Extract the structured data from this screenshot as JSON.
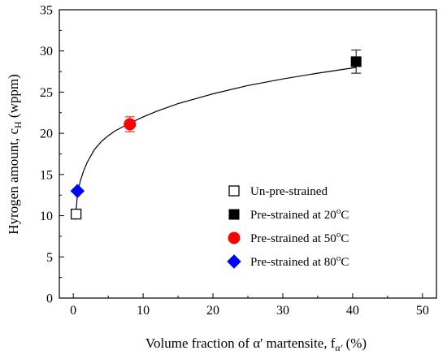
{
  "chart_data": {
    "type": "scatter",
    "xlabel": "Volume fraction of α' martensite, f",
    "xlabel_sub": "α'",
    "xlabel_suffix": " (%)",
    "ylabel": "Hyrogen amount, c",
    "ylabel_sub": "H",
    "ylabel_suffix": " (wppm)",
    "xlim": [
      -2,
      52
    ],
    "ylim": [
      0,
      35
    ],
    "xticks": [
      0,
      10,
      20,
      30,
      40,
      50
    ],
    "yticks": [
      0,
      5,
      10,
      15,
      20,
      25,
      30,
      35
    ],
    "grid": false,
    "legend_position": "center-right",
    "series": [
      {
        "name": "Un-pre-strained",
        "name_sup": "",
        "name_tail": "",
        "marker": "square-open",
        "color": "#000000",
        "points": [
          {
            "x": 0.4,
            "y": 10.2,
            "err": 0
          }
        ]
      },
      {
        "name": "Pre-strained at 20",
        "name_sup": "o",
        "name_tail": "C",
        "marker": "square-filled",
        "color": "#000000",
        "points": [
          {
            "x": 40.5,
            "y": 28.7,
            "err": 1.4
          }
        ]
      },
      {
        "name": "Pre-strained at 50",
        "name_sup": "o",
        "name_tail": "C",
        "marker": "circle",
        "color": "#ff0000",
        "points": [
          {
            "x": 8.1,
            "y": 21.1,
            "err": 0.9
          }
        ]
      },
      {
        "name": "Pre-strained at 80",
        "name_sup": "o",
        "name_tail": "C",
        "marker": "diamond",
        "color": "#0000ff",
        "points": [
          {
            "x": 0.6,
            "y": 13.0,
            "err": 0
          }
        ]
      }
    ],
    "fit_curve": {
      "x": [
        0.3,
        0.6,
        1,
        1.5,
        2,
        3,
        4,
        5,
        6,
        8,
        10,
        12,
        15,
        20,
        25,
        30,
        35,
        40.5
      ],
      "y": [
        9.5,
        12.7,
        14.2,
        15.5,
        16.5,
        18.0,
        19.0,
        19.7,
        20.3,
        21.2,
        22.0,
        22.7,
        23.6,
        24.8,
        25.8,
        26.6,
        27.3,
        28.0
      ]
    }
  }
}
